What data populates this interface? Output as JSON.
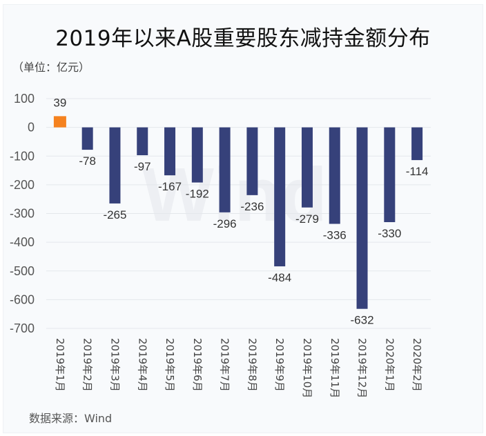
{
  "header": {
    "title": "2019年以来A股重要股东减持金额分布",
    "unit": "（单位：亿元）"
  },
  "footer": {
    "source": "数据来源：Wind"
  },
  "watermark": "Wind",
  "colors": {
    "positive": "#f5821f",
    "negative": "#36417a",
    "grid": "#e4e7eb"
  },
  "chart_data": {
    "type": "bar",
    "title": "2019年以来A股重要股东减持金额分布",
    "subtitle": "（单位：亿元）",
    "xlabel": "",
    "ylabel": "亿元",
    "ylim": [
      -700,
      100
    ],
    "yticks": [
      100,
      0,
      -100,
      -200,
      -300,
      -400,
      -500,
      -600,
      -700
    ],
    "grid": true,
    "legend": "none",
    "categories": [
      "2019年1月",
      "2019年2月",
      "2019年3月",
      "2019年4月",
      "2019年5月",
      "2019年6月",
      "2019年7月",
      "2019年8月",
      "2019年9月",
      "2019年10月",
      "2019年11月",
      "2019年12月",
      "2020年1月",
      "2020年2月"
    ],
    "values": [
      39,
      -78,
      -265,
      -97,
      -167,
      -192,
      -296,
      -236,
      -484,
      -279,
      -336,
      -632,
      -330,
      -114
    ],
    "annotations": [
      "数据来源：Wind"
    ]
  }
}
